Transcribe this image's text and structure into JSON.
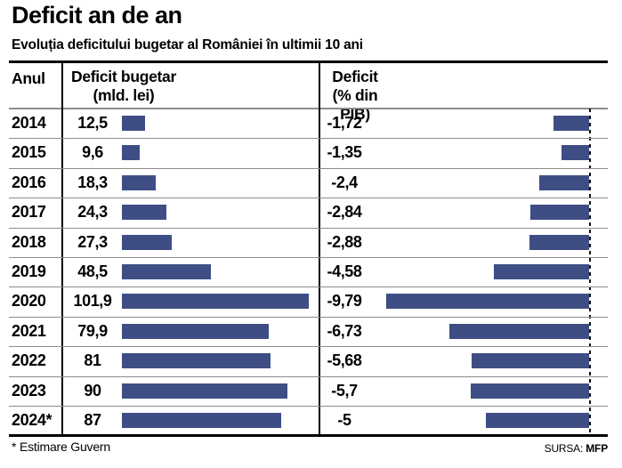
{
  "title": "Deficit an de an",
  "subtitle": "Evoluția deficitului bugetar al României în ultimii 10 ani",
  "table": {
    "col_year": "Anul",
    "col_left_line1": "Deficit bugetar",
    "col_left_line2": "(mld. lei)",
    "col_right_line1": "Deficit",
    "col_right_line2": "(% din PIB)",
    "rows": [
      {
        "year": "2014",
        "mld": "12,5",
        "pct": "-1,72",
        "mld_v": 12.5,
        "pct_v": -1.72
      },
      {
        "year": "2015",
        "mld": "9,6",
        "pct": "-1,35",
        "mld_v": 9.6,
        "pct_v": -1.35
      },
      {
        "year": "2016",
        "mld": "18,3",
        "pct": "-2,4",
        "mld_v": 18.3,
        "pct_v": -2.4
      },
      {
        "year": "2017",
        "mld": "24,3",
        "pct": "-2,84",
        "mld_v": 24.3,
        "pct_v": -2.84
      },
      {
        "year": "2018",
        "mld": "27,3",
        "pct": "-2,88",
        "mld_v": 27.3,
        "pct_v": -2.88
      },
      {
        "year": "2019",
        "mld": "48,5",
        "pct": "-4,58",
        "mld_v": 48.5,
        "pct_v": -4.58
      },
      {
        "year": "2020",
        "mld": "101,9",
        "pct": "-9,79",
        "mld_v": 101.9,
        "pct_v": -9.79
      },
      {
        "year": "2021",
        "mld": "79,9",
        "pct": "-6,73",
        "mld_v": 79.9,
        "pct_v": -6.73
      },
      {
        "year": "2022",
        "mld": "81",
        "pct": "-5,68",
        "mld_v": 81,
        "pct_v": -5.68
      },
      {
        "year": "2023",
        "mld": "90",
        "pct": "-5,7",
        "mld_v": 90,
        "pct_v": -5.7
      },
      {
        "year": "2024*",
        "mld": "87",
        "pct": "-5",
        "mld_v": 87,
        "pct_v": -5
      }
    ]
  },
  "footer": {
    "note": "* Estimare Guvern",
    "source_label": "SURSA:",
    "source_value": "MFP"
  },
  "colors": {
    "bar": "#3e4e84",
    "grid": "#8c8c8c",
    "rule": "#000000"
  },
  "chart_data": {
    "type": "bar",
    "orientation": "horizontal",
    "title": "Deficit an de an",
    "subtitle": "Evoluția deficitului bugetar al României în ultimii 10 ani",
    "categories": [
      "2014",
      "2015",
      "2016",
      "2017",
      "2018",
      "2019",
      "2020",
      "2021",
      "2022",
      "2023",
      "2024*"
    ],
    "series": [
      {
        "name": "Deficit bugetar (mld. lei)",
        "values": [
          12.5,
          9.6,
          18.3,
          24.3,
          27.3,
          48.5,
          101.9,
          79.9,
          81,
          90,
          87
        ]
      },
      {
        "name": "Deficit (% din PIB)",
        "values": [
          -1.72,
          -1.35,
          -2.4,
          -2.84,
          -2.88,
          -4.58,
          -9.79,
          -6.73,
          -5.68,
          -5.7,
          -5
        ]
      }
    ],
    "annotations": [
      "* Estimare Guvern",
      "SURSA: MFP"
    ],
    "layout": {
      "grid": "horizontal-separators",
      "legend": "none",
      "left_axis_range": [
        0,
        101.9
      ],
      "right_axis_range": [
        -9.79,
        0
      ],
      "right_zero_axis": "dashed"
    }
  }
}
